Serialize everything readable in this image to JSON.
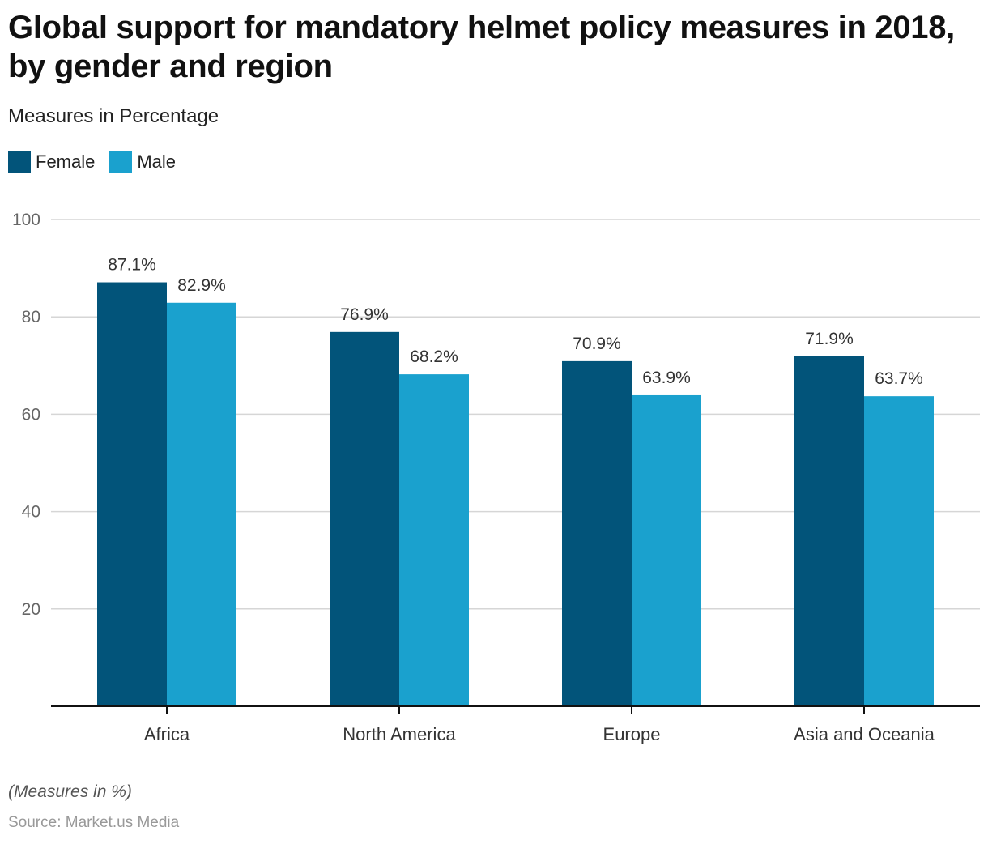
{
  "header": {
    "title": "Global support for mandatory helmet policy measures in 2018, by gender and region",
    "subtitle": "Measures in Percentage"
  },
  "legend": [
    {
      "label": "Female",
      "color": "#02547A"
    },
    {
      "label": "Male",
      "color": "#1AA1CE"
    }
  ],
  "footer": {
    "note": "(Measures in %)",
    "source": "Source: Market.us Media"
  },
  "chart_data": {
    "type": "bar",
    "title": "Global support for mandatory helmet policy measures in 2018, by gender and region",
    "subtitle": "Measures in Percentage",
    "xlabel": "",
    "ylabel": "",
    "categories": [
      "Africa",
      "North America",
      "Europe",
      "Asia and Oceania"
    ],
    "series": [
      {
        "name": "Female",
        "color": "#02547A",
        "values": [
          87.1,
          76.9,
          70.9,
          71.9
        ],
        "labels": [
          "87.1%",
          "76.9%",
          "70.9%",
          "71.9%"
        ]
      },
      {
        "name": "Male",
        "color": "#1AA1CE",
        "values": [
          82.9,
          68.2,
          63.9,
          63.7
        ],
        "labels": [
          "82.9%",
          "68.2%",
          "63.9%",
          "63.7%"
        ]
      }
    ],
    "ylim": [
      0,
      100
    ],
    "yticks": [
      20,
      40,
      60,
      80,
      100
    ],
    "grid": true,
    "legend_position": "top-left"
  }
}
